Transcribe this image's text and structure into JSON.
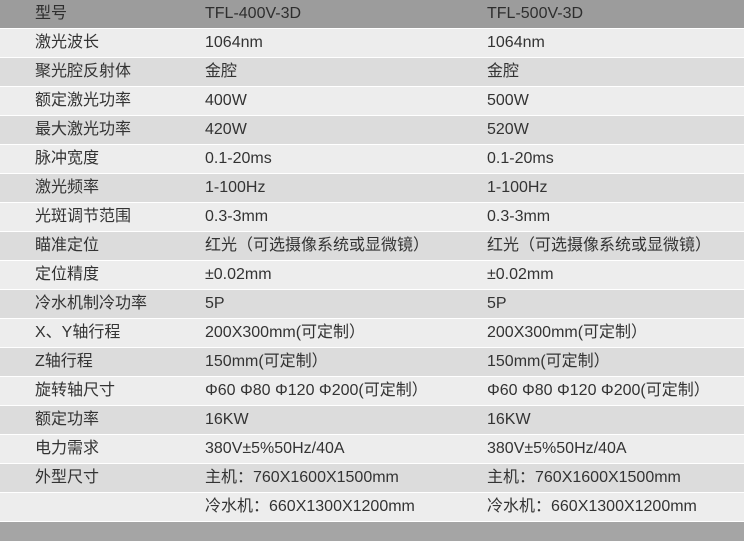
{
  "table": {
    "header": {
      "label": "型号",
      "model1": "TFL-400V-3D",
      "model2": "TFL-500V-3D"
    },
    "rows": [
      {
        "label": "激光波长",
        "v1": "1064nm",
        "v2": "1064nm"
      },
      {
        "label": "聚光腔反射体",
        "v1": "金腔",
        "v2": "金腔"
      },
      {
        "label": "额定激光功率",
        "v1": "400W",
        "v2": "500W"
      },
      {
        "label": "最大激光功率",
        "v1": "420W",
        "v2": "520W"
      },
      {
        "label": "脉冲宽度",
        "v1": "0.1-20ms",
        "v2": "0.1-20ms"
      },
      {
        "label": "激光频率",
        "v1": "1-100Hz",
        "v2": "1-100Hz"
      },
      {
        "label": "光斑调节范围",
        "v1": "0.3-3mm",
        "v2": "0.3-3mm"
      },
      {
        "label": "瞄准定位",
        "v1": "红光（可选摄像系统或显微镜）",
        "v2": "红光（可选摄像系统或显微镜）"
      },
      {
        "label": "定位精度",
        "v1": "±0.02mm",
        "v2": "±0.02mm"
      },
      {
        "label": "冷水机制冷功率",
        "v1": "5P",
        "v2": "5P"
      },
      {
        "label": "X、Y轴行程",
        "v1": "200X300mm(可定制）",
        "v2": "200X300mm(可定制）"
      },
      {
        "label": "Z轴行程",
        "v1": "150mm(可定制）",
        "v2": "150mm(可定制）"
      },
      {
        "label": "旋转轴尺寸",
        "v1": "Φ60 Φ80 Φ120 Φ200(可定制）",
        "v2": "Φ60 Φ80 Φ120 Φ200(可定制）"
      },
      {
        "label": "额定功率",
        "v1": "16KW",
        "v2": "16KW"
      },
      {
        "label": "电力需求",
        "v1": "380V±5%50Hz/40A",
        "v2": "380V±5%50Hz/40A"
      },
      {
        "label": "外型尺寸",
        "v1": "主机：760X1600X1500mm",
        "v2": "主机：760X1600X1500mm"
      },
      {
        "label": "",
        "v1": "冷水机：660X1300X1200mm",
        "v2": "冷水机：660X1300X1200mm"
      }
    ]
  },
  "colors": {
    "header_bg": "#9c9c9c",
    "footer_bg": "#a5a5a5",
    "row_light": "#ededed",
    "row_dark": "#dcdcdc",
    "text": "#333333"
  }
}
